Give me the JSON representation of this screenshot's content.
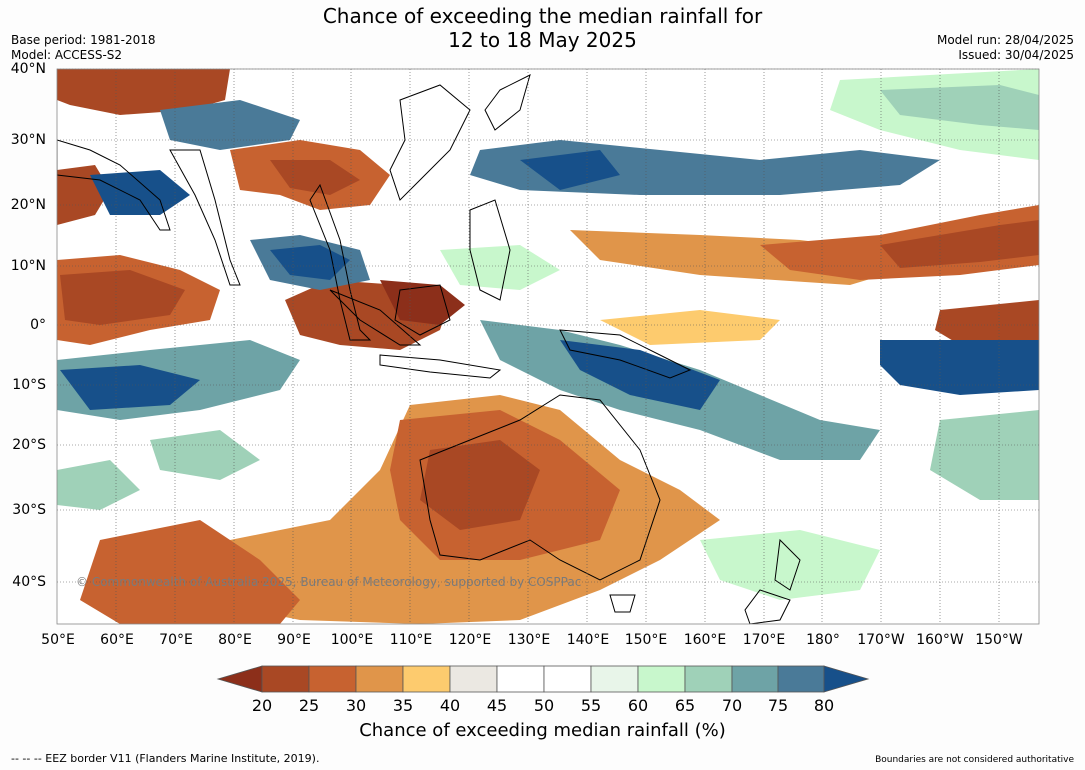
{
  "header": {
    "title_line1": "Chance of exceeding the median rainfall for",
    "title_line2": "12 to 18 May 2025",
    "base_period": "Base period: 1981-2018",
    "model": "Model: ACCESS-S2",
    "model_run": "Model run: 28/04/2025",
    "issued": "Issued: 30/04/2025"
  },
  "map": {
    "lat_labels": [
      "40°N",
      "30°N",
      "20°N",
      "10°N",
      "0°",
      "10°S",
      "20°S",
      "30°S",
      "40°S"
    ],
    "lon_labels": [
      "50°E",
      "60°E",
      "70°E",
      "80°E",
      "90°E",
      "100°E",
      "110°E",
      "120°E",
      "130°E",
      "140°E",
      "150°E",
      "160°E",
      "170°E",
      "180°",
      "170°W",
      "160°W",
      "150°W"
    ],
    "copyright": "© Commonwealth of Australia 2025, Bureau of Meteorology, supported by COSPPac"
  },
  "colorbar": {
    "ticks": [
      "20",
      "25",
      "30",
      "35",
      "40",
      "45",
      "50",
      "55",
      "60",
      "65",
      "70",
      "75",
      "80"
    ],
    "colors": [
      "#8c2f1a",
      "#a94824",
      "#c76230",
      "#e0954a",
      "#fdcb6e",
      "#ebe8e2",
      "#ffffff",
      "#ffffff",
      "#e8f5e9",
      "#c8f7cc",
      "#9fd1b8",
      "#6ea3a6",
      "#4a7a98",
      "#17508a"
    ],
    "title": "Chance of exceeding median rainfall (%)"
  },
  "footer": {
    "eez_note": "--  --  -- EEZ border V11 (Flanders Marine Institute, 2019).",
    "disclaimer": "Boundaries are not considered authoritative"
  }
}
